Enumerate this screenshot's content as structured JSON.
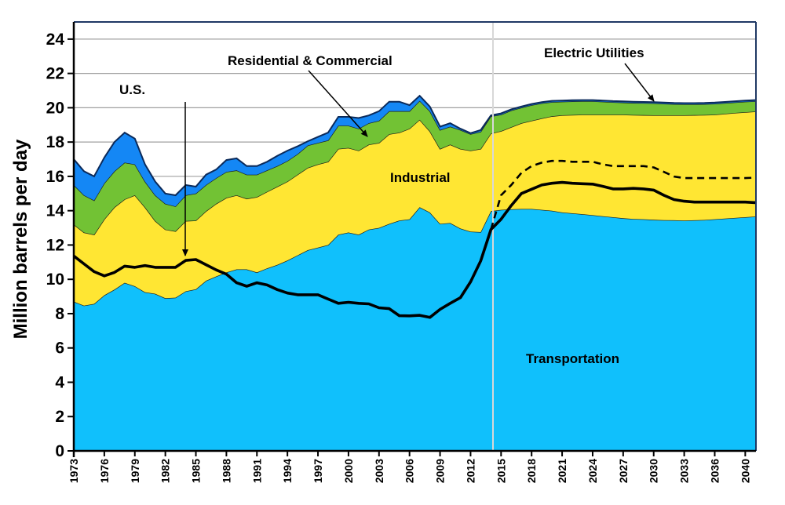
{
  "chart_data": {
    "type": "area",
    "stacked": true,
    "title": "",
    "ylabel": "Million barrels per day",
    "xlabel": "",
    "ylim": [
      0,
      25
    ],
    "yticks": [
      "0",
      "2",
      "4",
      "6",
      "8",
      "10",
      "12",
      "14",
      "16",
      "18",
      "20",
      "22",
      "24"
    ],
    "grid": true,
    "x_start": 1973,
    "x_end": 2040,
    "projection_start": 2014,
    "xtick_labels": [
      "1973",
      "1976",
      "1979",
      "1982",
      "1985",
      "1988",
      "1991",
      "1994",
      "1997",
      "2000",
      "2003",
      "2006",
      "2009",
      "2012",
      "2015",
      "2018",
      "2021",
      "2024",
      "2027",
      "2030",
      "2033",
      "2036",
      "2040"
    ],
    "colors": {
      "transportation": "#10c0fc",
      "industrial": "#ffe633",
      "residential_commercial": "#72c234",
      "electric_utilities": "#1487f5",
      "line": "#000000"
    },
    "series": [
      {
        "name": "Transportation",
        "values": [
          8.7,
          8.47,
          8.57,
          9.07,
          9.4,
          9.8,
          9.6,
          9.25,
          9.16,
          8.9,
          8.93,
          9.3,
          9.42,
          9.92,
          10.17,
          10.4,
          10.58,
          10.58,
          10.4,
          10.64,
          10.84,
          11.1,
          11.4,
          11.7,
          11.85,
          12.0,
          12.6,
          12.73,
          12.6,
          12.9,
          13.0,
          13.23,
          13.43,
          13.5,
          14.2,
          13.9,
          13.23,
          13.28,
          12.96,
          12.78,
          12.75,
          13.97,
          14.05,
          14.08,
          14.1,
          14.1,
          14.05,
          14.0,
          13.9,
          13.85,
          13.8,
          13.74,
          13.68,
          13.62,
          13.56,
          13.52,
          13.5,
          13.47,
          13.45,
          13.44,
          13.43,
          13.44,
          13.46,
          13.5,
          13.54,
          13.58,
          13.62,
          13.66
        ]
      },
      {
        "name": "Industrial",
        "values": [
          4.5,
          4.26,
          4.03,
          4.43,
          4.8,
          4.86,
          5.3,
          4.95,
          4.24,
          4.0,
          3.87,
          4.1,
          4.01,
          4.05,
          4.23,
          4.35,
          4.32,
          4.12,
          4.4,
          4.46,
          4.56,
          4.6,
          4.7,
          4.8,
          4.85,
          4.85,
          5.0,
          4.93,
          4.9,
          4.95,
          4.95,
          5.23,
          5.12,
          5.28,
          5.1,
          4.73,
          4.37,
          4.57,
          4.64,
          4.72,
          4.85,
          4.53,
          4.59,
          4.79,
          5.0,
          5.14,
          5.33,
          5.5,
          5.66,
          5.73,
          5.8,
          5.86,
          5.92,
          5.98,
          6.04,
          6.06,
          6.07,
          6.09,
          6.11,
          6.12,
          6.13,
          6.13,
          6.12,
          6.1,
          6.11,
          6.12,
          6.12,
          6.12
        ]
      },
      {
        "name": "Residential & Commercial",
        "values": [
          2.3,
          2.17,
          2.0,
          2.1,
          2.1,
          2.14,
          1.8,
          1.5,
          1.5,
          1.5,
          1.45,
          1.5,
          1.57,
          1.53,
          1.5,
          1.51,
          1.45,
          1.4,
          1.3,
          1.25,
          1.2,
          1.2,
          1.2,
          1.3,
          1.25,
          1.25,
          1.36,
          1.3,
          1.28,
          1.25,
          1.29,
          1.34,
          1.25,
          1.02,
          1.1,
          1.17,
          1.1,
          1.05,
          1.1,
          0.96,
          1.0,
          1.0,
          0.96,
          0.97,
          0.9,
          0.91,
          0.88,
          0.83,
          0.79,
          0.79,
          0.78,
          0.78,
          0.75,
          0.72,
          0.7,
          0.7,
          0.7,
          0.7,
          0.67,
          0.65,
          0.64,
          0.63,
          0.63,
          0.63,
          0.62,
          0.61,
          0.61,
          0.6
        ]
      },
      {
        "name": "Electric Utilities",
        "values": [
          1.5,
          1.4,
          1.4,
          1.5,
          1.7,
          1.75,
          1.5,
          1.0,
          0.8,
          0.6,
          0.65,
          0.6,
          0.4,
          0.6,
          0.5,
          0.69,
          0.7,
          0.5,
          0.5,
          0.5,
          0.6,
          0.6,
          0.45,
          0.25,
          0.35,
          0.45,
          0.51,
          0.51,
          0.62,
          0.45,
          0.56,
          0.55,
          0.55,
          0.35,
          0.3,
          0.27,
          0.2,
          0.2,
          0.08,
          0.06,
          0.1,
          0.05,
          0.07,
          0.07,
          0.07,
          0.07,
          0.07,
          0.07,
          0.07,
          0.07,
          0.07,
          0.07,
          0.07,
          0.07,
          0.07,
          0.07,
          0.07,
          0.07,
          0.07,
          0.07,
          0.07,
          0.07,
          0.07,
          0.07,
          0.07,
          0.07,
          0.07,
          0.07
        ]
      }
    ],
    "lines": [
      {
        "name": "U.S.",
        "style": "solid",
        "values": [
          11.36,
          10.9,
          10.45,
          10.2,
          10.4,
          10.77,
          10.7,
          10.8,
          10.7,
          10.7,
          10.7,
          11.1,
          11.15,
          10.85,
          10.55,
          10.3,
          9.8,
          9.6,
          9.8,
          9.67,
          9.4,
          9.2,
          9.1,
          9.1,
          9.1,
          8.85,
          8.6,
          8.66,
          8.6,
          8.57,
          8.34,
          8.29,
          7.88,
          7.87,
          7.9,
          7.78,
          8.25,
          8.6,
          8.93,
          9.85,
          11.08,
          12.9,
          13.5,
          14.3,
          15.0,
          15.25,
          15.5,
          15.6,
          15.65,
          15.6,
          15.57,
          15.55,
          15.42,
          15.27,
          15.27,
          15.3,
          15.27,
          15.2,
          14.9,
          14.65,
          14.55,
          14.5,
          14.5,
          14.5,
          14.5,
          14.5,
          14.5,
          14.47
        ]
      },
      {
        "style": "dashed",
        "x_start": 2014,
        "values": [
          12.9,
          14.9,
          15.5,
          16.2,
          16.6,
          16.8,
          16.9,
          16.9,
          16.85,
          16.85,
          16.85,
          16.7,
          16.6,
          16.6,
          16.6,
          16.6,
          16.52,
          16.26,
          15.99,
          15.9,
          15.9,
          15.9,
          15.9,
          15.9,
          15.9,
          15.9,
          15.93
        ]
      }
    ],
    "annotations": {
      "us": "U.S.",
      "residential_commercial": "Residential & Commercial",
      "electric_utilities": "Electric Utilities",
      "industrial": "Industrial",
      "transportation": "Transportation"
    }
  }
}
